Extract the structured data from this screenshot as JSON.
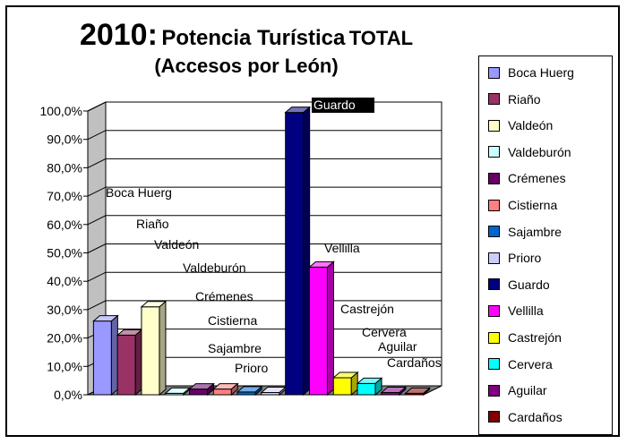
{
  "chart_data": {
    "type": "bar",
    "title_year": "2010:",
    "title_main": "Potencia Turística",
    "title_total": "TOTAL",
    "subtitle": "(Accesos por León)",
    "ylim": [
      0,
      100
    ],
    "y_ticks": [
      "0,0%",
      "10,0%",
      "20,0%",
      "30,0%",
      "40,0%",
      "50,0%",
      "60,0%",
      "70,0%",
      "80,0%",
      "90,0%",
      "100,0%"
    ],
    "grid": true,
    "legend_position": "right",
    "categories": [
      "Boca Huerg",
      "Riaño",
      "Valdeón",
      "Valdeburón",
      "Crémenes",
      "Cistierna",
      "Sajambre",
      "Prioro",
      "Guardo",
      "Vellilla",
      "Castrejón",
      "Cervera",
      "Aguilar",
      "Cardaños"
    ],
    "values": [
      26,
      21,
      31,
      0.5,
      2,
      2,
      1,
      0.8,
      99.5,
      45,
      6,
      4,
      0.8,
      0.5
    ],
    "colors": [
      "#9999ff",
      "#993366",
      "#ffffcc",
      "#ccffff",
      "#660066",
      "#ff8080",
      "#0066cc",
      "#ccccff",
      "#000080",
      "#ff00ff",
      "#ffff00",
      "#00ffff",
      "#800080",
      "#800000"
    ]
  }
}
